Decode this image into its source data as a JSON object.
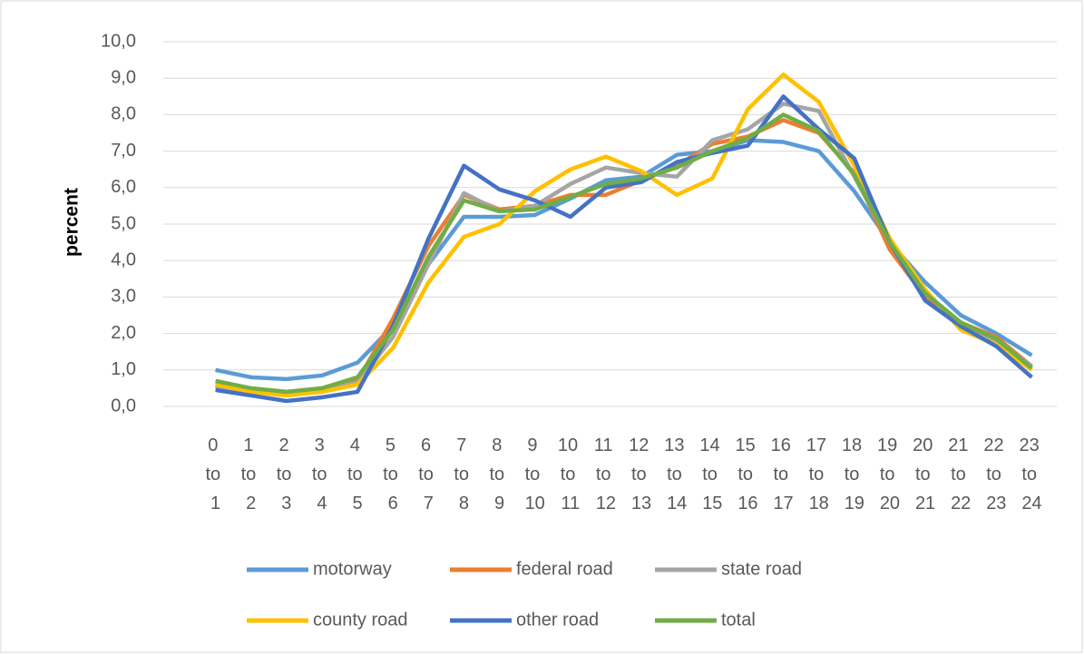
{
  "chart_data": {
    "type": "line",
    "y_label": "percent",
    "categories": [
      "0 to 1",
      "1 to 2",
      "2 to 3",
      "3 to 4",
      "4 to 5",
      "5 to 6",
      "6 to 7",
      "7 to 8",
      "8 to 9",
      "9 to 10",
      "10 to 11",
      "11 to 12",
      "12 to 13",
      "13 to 14",
      "14 to 15",
      "15 to 16",
      "16 to 17",
      "17 to 18",
      "18 to 19",
      "19 to 20",
      "20 to 21",
      "21 to 22",
      "22 to 23",
      "23 to 24"
    ],
    "series": [
      {
        "name": "motorway",
        "color": "#5b9bd5",
        "values": [
          1.0,
          0.8,
          0.75,
          0.85,
          1.2,
          2.2,
          3.9,
          5.2,
          5.2,
          5.25,
          5.7,
          6.2,
          6.3,
          6.9,
          7.0,
          7.3,
          7.25,
          7.0,
          5.9,
          4.5,
          3.4,
          2.5,
          2.0,
          1.4
        ]
      },
      {
        "name": "federal road",
        "color": "#ed7d31",
        "values": [
          0.6,
          0.45,
          0.35,
          0.4,
          0.7,
          2.4,
          4.4,
          5.8,
          5.4,
          5.5,
          5.8,
          5.8,
          6.2,
          6.6,
          7.2,
          7.4,
          7.85,
          7.5,
          6.4,
          4.3,
          3.0,
          2.3,
          1.9,
          1.1
        ]
      },
      {
        "name": "state road",
        "color": "#a5a5a5",
        "values": [
          0.55,
          0.4,
          0.35,
          0.45,
          0.65,
          1.9,
          3.9,
          5.85,
          5.35,
          5.5,
          6.1,
          6.55,
          6.4,
          6.3,
          7.3,
          7.6,
          8.3,
          8.1,
          6.3,
          4.5,
          3.1,
          2.3,
          1.8,
          1.1
        ]
      },
      {
        "name": "county road",
        "color": "#ffc000",
        "values": [
          0.6,
          0.4,
          0.3,
          0.4,
          0.6,
          1.6,
          3.4,
          4.65,
          5.0,
          5.9,
          6.5,
          6.85,
          6.45,
          5.8,
          6.25,
          8.15,
          9.1,
          8.35,
          6.6,
          4.6,
          3.2,
          2.1,
          1.7,
          1.0
        ]
      },
      {
        "name": "other road",
        "color": "#4472c4",
        "values": [
          0.45,
          0.3,
          0.15,
          0.25,
          0.4,
          2.2,
          4.6,
          6.6,
          5.95,
          5.65,
          5.2,
          6.0,
          6.15,
          6.7,
          6.95,
          7.15,
          8.5,
          7.6,
          6.8,
          4.5,
          2.9,
          2.2,
          1.65,
          0.8
        ]
      },
      {
        "name": "total",
        "color": "#70ad47",
        "values": [
          0.7,
          0.5,
          0.4,
          0.5,
          0.8,
          2.1,
          4.1,
          5.65,
          5.35,
          5.4,
          5.75,
          6.1,
          6.25,
          6.55,
          7.0,
          7.35,
          8.0,
          7.55,
          6.35,
          4.5,
          3.1,
          2.3,
          1.85,
          1.05
        ]
      }
    ],
    "ylim": [
      0,
      10
    ],
    "yticks": [
      {
        "value": 0,
        "label": "0,0"
      },
      {
        "value": 1,
        "label": "1,0"
      },
      {
        "value": 2,
        "label": "2,0"
      },
      {
        "value": 3,
        "label": "3,0"
      },
      {
        "value": 4,
        "label": "4,0"
      },
      {
        "value": 5,
        "label": "5,0"
      },
      {
        "value": 6,
        "label": "6,0"
      },
      {
        "value": 7,
        "label": "7,0"
      },
      {
        "value": 8,
        "label": "8,0"
      },
      {
        "value": 9,
        "label": "9,0"
      },
      {
        "value": 10,
        "label": "10,0"
      }
    ],
    "grid": true,
    "legend": "bottom"
  }
}
